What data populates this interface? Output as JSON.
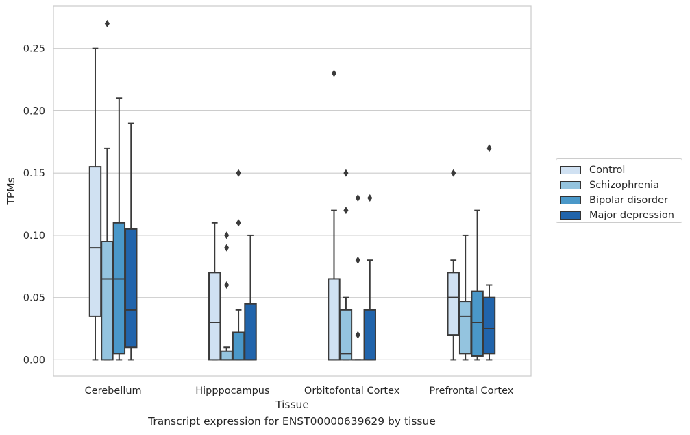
{
  "chart_data": {
    "type": "box",
    "xlabel": "Tissue",
    "ylabel": "TPMs",
    "caption": "Transcript expression for ENST00000639629 by tissue",
    "ylim": [
      -0.013,
      0.284
    ],
    "yticks": [
      "0.00",
      "0.05",
      "0.10",
      "0.15",
      "0.20",
      "0.25"
    ],
    "grid": "horizontal",
    "legend_position": "right",
    "categories": [
      "Cerebellum",
      "Hipppocampus",
      "Orbitofontal Cortex",
      "Prefrontal Cortex"
    ],
    "series": [
      {
        "name": "Control",
        "color": "#d0e1f2",
        "boxes": [
          {
            "low": 0.0,
            "q1": 0.035,
            "median": 0.09,
            "q3": 0.155,
            "high": 0.25,
            "outliers": []
          },
          {
            "low": 0.0,
            "q1": 0.0,
            "median": 0.03,
            "q3": 0.07,
            "high": 0.11,
            "outliers": []
          },
          {
            "low": 0.0,
            "q1": 0.0,
            "median": 0.0,
            "q3": 0.065,
            "high": 0.12,
            "outliers": [
              0.23
            ]
          },
          {
            "low": 0.0,
            "q1": 0.02,
            "median": 0.05,
            "q3": 0.07,
            "high": 0.08,
            "outliers": [
              0.15
            ]
          }
        ]
      },
      {
        "name": "Schizophrenia",
        "color": "#94c4df",
        "boxes": [
          {
            "low": 0.0,
            "q1": 0.0,
            "median": 0.065,
            "q3": 0.095,
            "high": 0.17,
            "outliers": [
              0.27
            ]
          },
          {
            "low": 0.0,
            "q1": 0.0,
            "median": 0.0,
            "q3": 0.007,
            "high": 0.01,
            "outliers": [
              0.06,
              0.09,
              0.1
            ]
          },
          {
            "low": 0.0,
            "q1": 0.0,
            "median": 0.005,
            "q3": 0.04,
            "high": 0.05,
            "outliers": [
              0.12,
              0.15
            ]
          },
          {
            "low": 0.0,
            "q1": 0.005,
            "median": 0.035,
            "q3": 0.047,
            "high": 0.1,
            "outliers": []
          }
        ]
      },
      {
        "name": "Bipolar disorder",
        "color": "#4a98c9",
        "boxes": [
          {
            "low": 0.0,
            "q1": 0.005,
            "median": 0.065,
            "q3": 0.11,
            "high": 0.21,
            "outliers": []
          },
          {
            "low": 0.0,
            "q1": 0.0,
            "median": 0.0,
            "q3": 0.022,
            "high": 0.04,
            "outliers": [
              0.11,
              0.15
            ]
          },
          {
            "low": 0.0,
            "q1": 0.0,
            "median": 0.0,
            "q3": 0.0,
            "high": 0.0,
            "outliers": [
              0.02,
              0.08,
              0.13
            ]
          },
          {
            "low": 0.0,
            "q1": 0.003,
            "median": 0.03,
            "q3": 0.055,
            "high": 0.12,
            "outliers": []
          }
        ]
      },
      {
        "name": "Major depression",
        "color": "#2164ab",
        "boxes": [
          {
            "low": 0.0,
            "q1": 0.01,
            "median": 0.04,
            "q3": 0.105,
            "high": 0.19,
            "outliers": []
          },
          {
            "low": 0.0,
            "q1": 0.0,
            "median": 0.0,
            "q3": 0.045,
            "high": 0.1,
            "outliers": []
          },
          {
            "low": 0.0,
            "q1": 0.0,
            "median": 0.0,
            "q3": 0.04,
            "high": 0.08,
            "outliers": [
              0.13
            ]
          },
          {
            "low": 0.0,
            "q1": 0.005,
            "median": 0.025,
            "q3": 0.05,
            "high": 0.06,
            "outliers": [
              0.17
            ]
          }
        ]
      }
    ]
  }
}
